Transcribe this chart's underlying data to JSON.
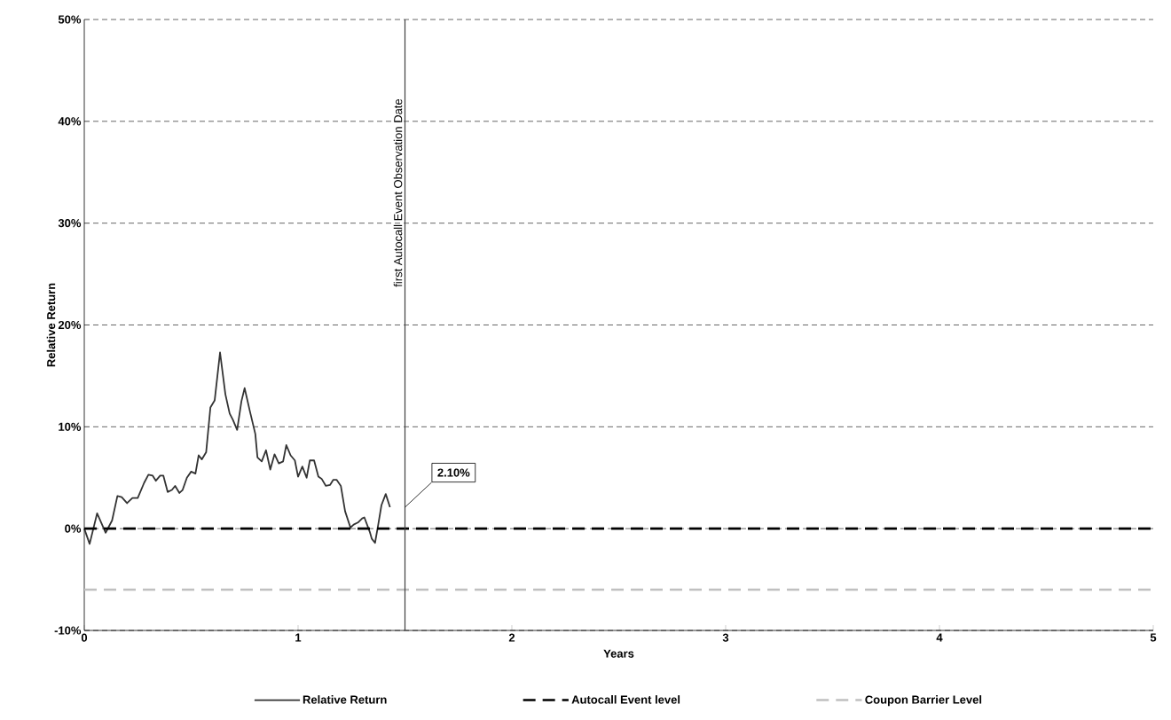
{
  "chart_data": {
    "type": "line",
    "xlabel": "Years",
    "ylabel": "Relative Return",
    "xlim": [
      0,
      5
    ],
    "ylim": [
      -10,
      50
    ],
    "xticks": [
      0,
      1,
      2,
      3,
      4,
      5
    ],
    "yticks": [
      {
        "value": -10,
        "label": "-10%"
      },
      {
        "value": 0,
        "label": "0%"
      },
      {
        "value": 10,
        "label": "10%"
      },
      {
        "value": 20,
        "label": "20%"
      },
      {
        "value": 30,
        "label": "30%"
      },
      {
        "value": 40,
        "label": "40%"
      },
      {
        "value": 50,
        "label": "50%"
      }
    ],
    "grid": "y",
    "legend": "bottom",
    "marker": "none",
    "series": [
      {
        "name": "Relative Return",
        "color": "#333333",
        "line_style": "solid",
        "x": [
          0,
          0.025,
          0.06,
          0.1,
          0.13,
          0.155,
          0.175,
          0.2,
          0.225,
          0.25,
          0.28,
          0.3,
          0.32,
          0.335,
          0.355,
          0.37,
          0.39,
          0.41,
          0.425,
          0.445,
          0.46,
          0.48,
          0.5,
          0.52,
          0.535,
          0.55,
          0.57,
          0.59,
          0.61,
          0.635,
          0.66,
          0.68,
          0.695,
          0.715,
          0.735,
          0.75,
          0.775,
          0.8,
          0.81,
          0.83,
          0.85,
          0.87,
          0.89,
          0.91,
          0.93,
          0.945,
          0.965,
          0.985,
          1.0,
          1.02,
          1.04,
          1.055,
          1.075,
          1.095,
          1.11,
          1.13,
          1.15,
          1.165,
          1.18,
          1.2,
          1.22,
          1.245,
          1.26,
          1.28,
          1.3,
          1.31,
          1.335,
          1.345,
          1.36,
          1.375,
          1.39,
          1.41,
          1.43
        ],
        "values": [
          0,
          -1.5,
          1.5,
          -0.4,
          0.8,
          3.2,
          3.1,
          2.5,
          3.0,
          3.0,
          4.5,
          5.3,
          5.2,
          4.7,
          5.2,
          5.2,
          3.6,
          3.8,
          4.2,
          3.5,
          3.8,
          5.0,
          5.6,
          5.4,
          7.2,
          6.8,
          7.5,
          11.9,
          12.6,
          17.3,
          13.2,
          11.3,
          10.7,
          9.7,
          12.5,
          13.8,
          11.5,
          9.3,
          7.0,
          6.6,
          7.7,
          5.8,
          7.3,
          6.4,
          6.6,
          8.2,
          7.2,
          6.7,
          5.1,
          6.1,
          5.0,
          6.7,
          6.7,
          5.1,
          4.9,
          4.2,
          4.3,
          4.8,
          4.8,
          4.2,
          1.7,
          0.1,
          0.4,
          0.6,
          1.0,
          1.1,
          -0.3,
          -1.0,
          -1.4,
          0.4,
          2.3,
          3.4,
          2.1
        ]
      },
      {
        "name": "Autocall Event level",
        "color": "#000000",
        "line_style": "dashed",
        "x": [
          0,
          5
        ],
        "values": [
          0,
          0
        ]
      },
      {
        "name": "Coupon Barrier Level",
        "color": "#c0c0c0",
        "line_style": "dashed",
        "x": [
          0,
          5
        ],
        "values": [
          -6,
          -6
        ]
      }
    ],
    "ref_lines": [
      {
        "axis": "x",
        "value": 1.5,
        "label": "first Autocall Event Observation Date",
        "color": "#404040"
      }
    ],
    "annotations": [
      {
        "text": "2.10%",
        "x": 1.5,
        "y": 2.1
      }
    ]
  }
}
